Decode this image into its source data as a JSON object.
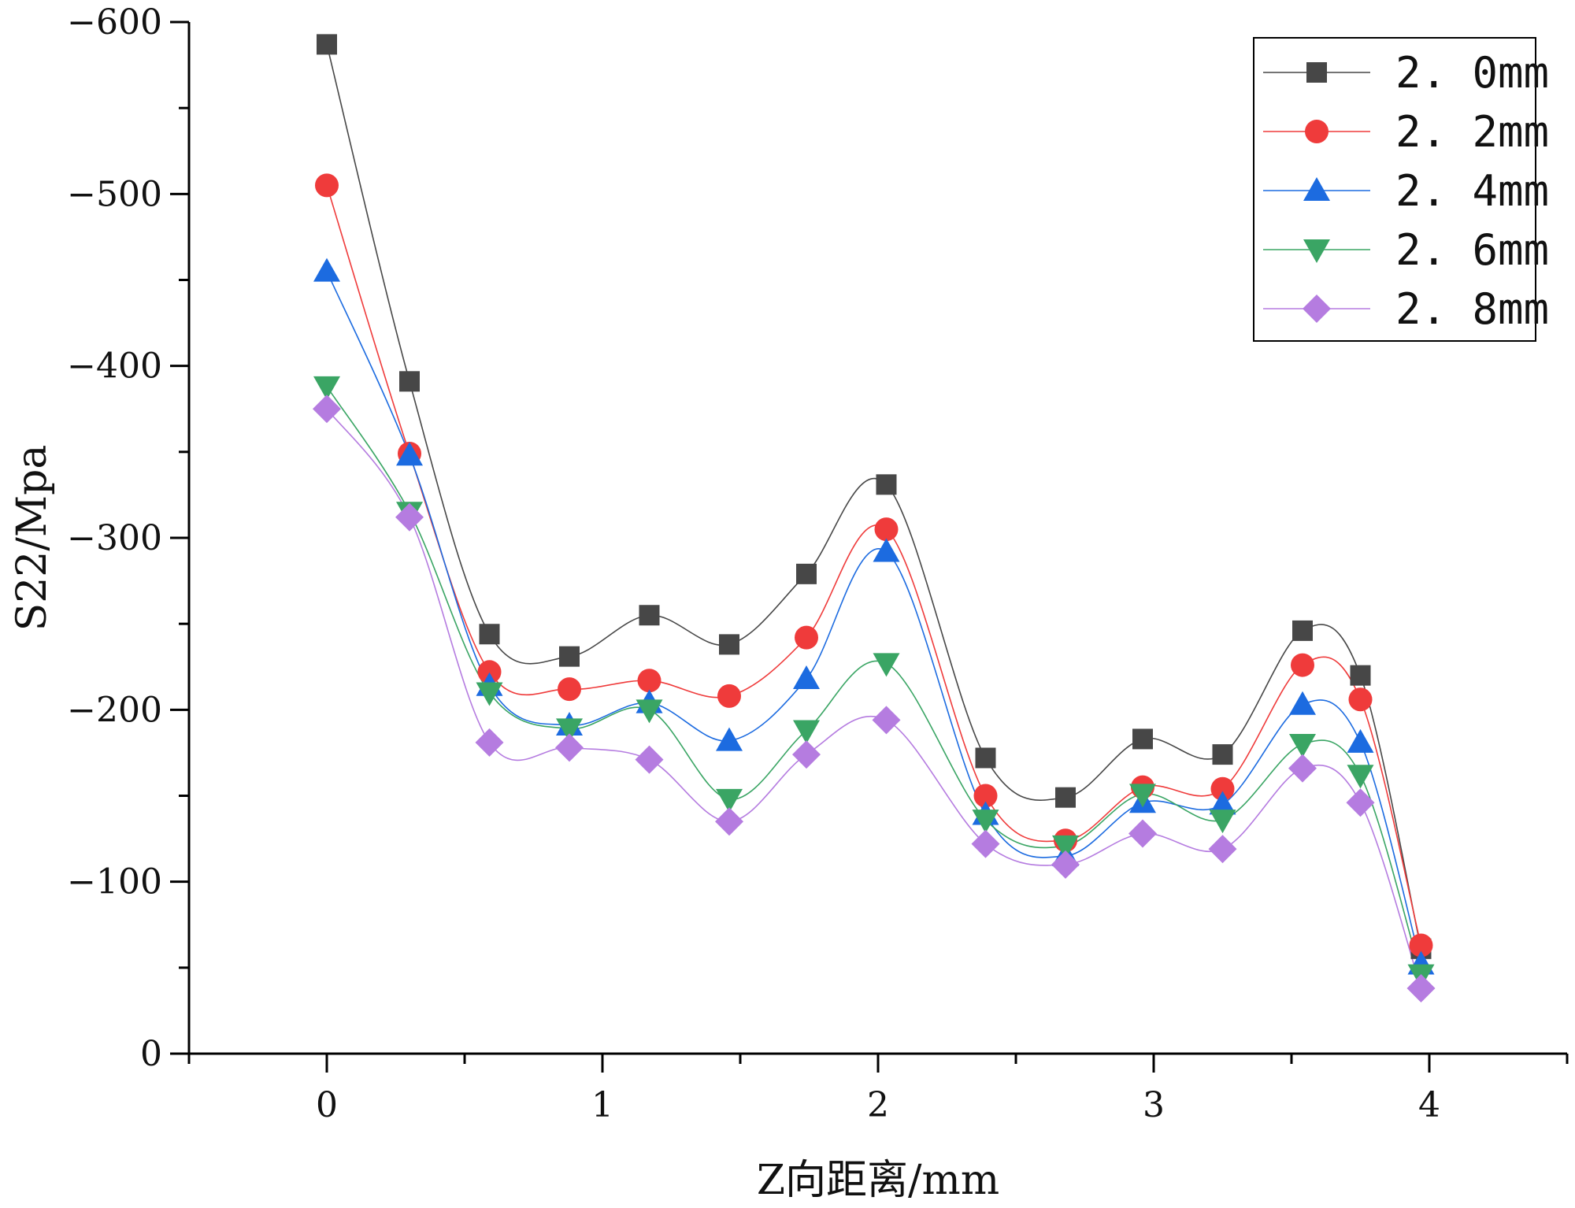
{
  "chart_data": {
    "type": "line",
    "title": "",
    "xlabel": "Z向距离/mm",
    "ylabel": "S22/Mpa",
    "xlim": [
      -0.5,
      4.5
    ],
    "ylim": [
      0,
      -600
    ],
    "x_ticks": [
      0,
      1,
      2,
      3,
      4
    ],
    "y_ticks": [
      0,
      -100,
      -200,
      -300,
      -400,
      -500,
      -600
    ],
    "x_tick_labels": [
      "0",
      "1",
      "2",
      "3",
      "4"
    ],
    "y_tick_labels": [
      "0",
      "−100",
      "−200",
      "−300",
      "−400",
      "−500",
      "−600"
    ],
    "grid": false,
    "legend_position": "top-right",
    "x": [
      0,
      0.3,
      0.59,
      0.88,
      1.17,
      1.46,
      1.74,
      2.03,
      2.39,
      2.68,
      2.96,
      3.25,
      3.54,
      3.75,
      3.97
    ],
    "series": [
      {
        "name": "2.0mm",
        "marker": "square",
        "color": "#474747",
        "values": [
          -587,
          -391,
          -244,
          -231,
          -255,
          -238,
          -279,
          -331,
          -172,
          -149,
          -183,
          -174,
          -246,
          -220,
          -61
        ]
      },
      {
        "name": "2.2mm",
        "marker": "circle",
        "color": "#ef3b3b",
        "values": [
          -505,
          -349,
          -222,
          -212,
          -217,
          -208,
          -242,
          -305,
          -150,
          -124,
          -155,
          -154,
          -226,
          -206,
          -63
        ]
      },
      {
        "name": "2.4mm",
        "marker": "triangle-up",
        "color": "#1c6be0",
        "values": [
          -455,
          -348,
          -214,
          -191,
          -204,
          -182,
          -218,
          -292,
          -139,
          -115,
          -146,
          -145,
          -203,
          -181,
          -52
        ]
      },
      {
        "name": "2.6mm",
        "marker": "triangle-down",
        "color": "#3aa564",
        "values": [
          -388,
          -315,
          -210,
          -189,
          -200,
          -148,
          -188,
          -227,
          -136,
          -121,
          -151,
          -136,
          -180,
          -162,
          -46
        ]
      },
      {
        "name": "2.8mm",
        "marker": "diamond",
        "color": "#b57ce0",
        "values": [
          -375,
          -312,
          -181,
          -178,
          -171,
          -135,
          -174,
          -194,
          -122,
          -110,
          -128,
          -119,
          -166,
          -146,
          -38
        ]
      }
    ]
  }
}
